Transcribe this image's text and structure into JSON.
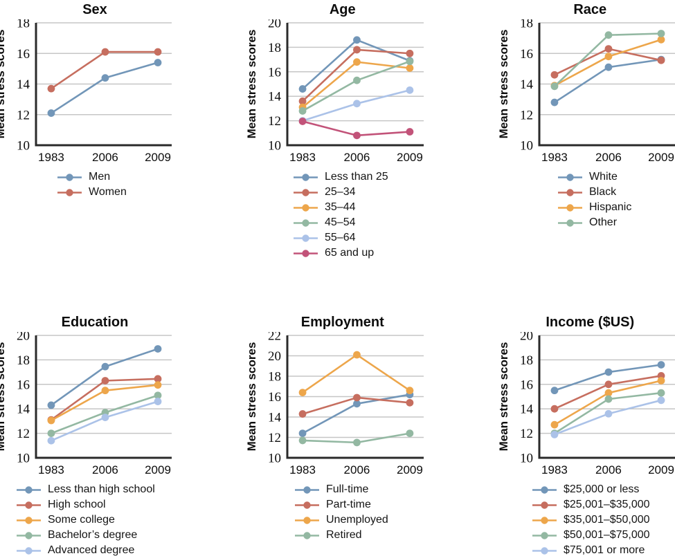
{
  "figure": {
    "ylabel": "Mean stress scores",
    "x_categories": [
      "1983",
      "2006",
      "2009"
    ]
  },
  "palette": {
    "blue": "#7296b8",
    "red": "#c66e5f",
    "orange": "#eda64b",
    "green": "#93b8a2",
    "periwinkle": "#abc2e8",
    "magenta": "#c25379",
    "gridline": "#c6c6c6",
    "axis": "#2a2a2a"
  },
  "chart_data": [
    {
      "type": "line",
      "title": "Sex",
      "xlabel": "",
      "ylabel": "Mean stress scores",
      "x": [
        "1983",
        "2006",
        "2009"
      ],
      "ylim": [
        10,
        18
      ],
      "yticks": [
        10,
        12,
        14,
        16,
        18
      ],
      "grid": true,
      "legend_position": "below",
      "series": [
        {
          "name": "Men",
          "color": "#7296b8",
          "values": [
            12.1,
            14.4,
            15.4
          ]
        },
        {
          "name": "Women",
          "color": "#c66e5f",
          "values": [
            13.7,
            16.1,
            16.1
          ]
        }
      ]
    },
    {
      "type": "line",
      "title": "Age",
      "xlabel": "",
      "ylabel": "Mean stress scores",
      "x": [
        "1983",
        "2006",
        "2009"
      ],
      "ylim": [
        10,
        20
      ],
      "yticks": [
        10,
        12,
        14,
        16,
        18,
        20
      ],
      "grid": true,
      "legend_position": "below",
      "series": [
        {
          "name": "Less than 25",
          "color": "#7296b8",
          "values": [
            14.6,
            18.6,
            16.9
          ]
        },
        {
          "name": "25–34",
          "color": "#c66e5f",
          "values": [
            13.6,
            17.8,
            17.5
          ]
        },
        {
          "name": "35–44",
          "color": "#eda64b",
          "values": [
            13.1,
            16.8,
            16.3
          ]
        },
        {
          "name": "45–54",
          "color": "#93b8a2",
          "values": [
            12.8,
            15.3,
            16.85
          ]
        },
        {
          "name": "55–64",
          "color": "#abc2e8",
          "values": [
            12.0,
            13.4,
            14.5
          ]
        },
        {
          "name": "65 and up",
          "color": "#c25379",
          "values": [
            11.95,
            10.8,
            11.1
          ]
        }
      ]
    },
    {
      "type": "line",
      "title": "Race",
      "xlabel": "",
      "ylabel": "Mean stress scores",
      "x": [
        "1983",
        "2006",
        "2009"
      ],
      "ylim": [
        10,
        18
      ],
      "yticks": [
        10,
        12,
        14,
        16,
        18
      ],
      "grid": true,
      "legend_position": "below",
      "series": [
        {
          "name": "White",
          "color": "#7296b8",
          "values": [
            12.8,
            15.1,
            15.6
          ]
        },
        {
          "name": "Black",
          "color": "#c66e5f",
          "values": [
            14.6,
            16.3,
            15.55
          ]
        },
        {
          "name": "Hispanic",
          "color": "#eda64b",
          "values": [
            13.9,
            15.8,
            16.9
          ]
        },
        {
          "name": "Other",
          "color": "#93b8a2",
          "values": [
            13.85,
            17.2,
            17.3
          ]
        }
      ]
    },
    {
      "type": "line",
      "title": "Education",
      "xlabel": "",
      "ylabel": "Mean stress scores",
      "x": [
        "1983",
        "2006",
        "2009"
      ],
      "ylim": [
        10,
        20
      ],
      "yticks": [
        10,
        12,
        14,
        16,
        18,
        20
      ],
      "grid": true,
      "legend_position": "below",
      "series": [
        {
          "name": "Less than high school",
          "color": "#7296b8",
          "values": [
            14.3,
            17.45,
            18.9
          ]
        },
        {
          "name": "High school",
          "color": "#c66e5f",
          "values": [
            13.1,
            16.3,
            16.45
          ]
        },
        {
          "name": "Some college",
          "color": "#eda64b",
          "values": [
            13.05,
            15.5,
            15.95
          ]
        },
        {
          "name": "Bachelor’s degree",
          "color": "#93b8a2",
          "values": [
            12.0,
            13.7,
            15.1
          ]
        },
        {
          "name": "Advanced degree",
          "color": "#abc2e8",
          "values": [
            11.4,
            13.3,
            14.6
          ]
        }
      ]
    },
    {
      "type": "line",
      "title": "Employment",
      "xlabel": "",
      "ylabel": "Mean stress scores",
      "x": [
        "1983",
        "2006",
        "2009"
      ],
      "ylim": [
        10,
        22
      ],
      "yticks": [
        10,
        12,
        14,
        16,
        18,
        20,
        22
      ],
      "grid": true,
      "legend_position": "below",
      "series": [
        {
          "name": "Full-time",
          "color": "#7296b8",
          "values": [
            12.4,
            15.3,
            16.2
          ]
        },
        {
          "name": "Part-time",
          "color": "#c66e5f",
          "values": [
            14.3,
            15.9,
            15.4
          ]
        },
        {
          "name": "Unemployed",
          "color": "#eda64b",
          "values": [
            16.4,
            20.1,
            16.6
          ]
        },
        {
          "name": "Retired",
          "color": "#93b8a2",
          "values": [
            11.7,
            11.5,
            12.4
          ]
        }
      ]
    },
    {
      "type": "line",
      "title": "Income ($US)",
      "xlabel": "",
      "ylabel": "Mean stress scores",
      "x": [
        "1983",
        "2006",
        "2009"
      ],
      "ylim": [
        10,
        20
      ],
      "yticks": [
        10,
        12,
        14,
        16,
        18,
        20
      ],
      "grid": true,
      "legend_position": "below",
      "series": [
        {
          "name": "$25,000 or less",
          "color": "#7296b8",
          "values": [
            15.5,
            17.0,
            17.6
          ]
        },
        {
          "name": "$25,001–$35,000",
          "color": "#c66e5f",
          "values": [
            14.0,
            16.0,
            16.7
          ]
        },
        {
          "name": "$35,001–$50,000",
          "color": "#eda64b",
          "values": [
            12.7,
            15.3,
            16.3
          ]
        },
        {
          "name": "$50,001–$75,000",
          "color": "#93b8a2",
          "values": [
            12.0,
            14.8,
            15.3
          ]
        },
        {
          "name": "$75,001 or more",
          "color": "#abc2e8",
          "values": [
            11.9,
            13.6,
            14.7
          ]
        }
      ]
    }
  ]
}
